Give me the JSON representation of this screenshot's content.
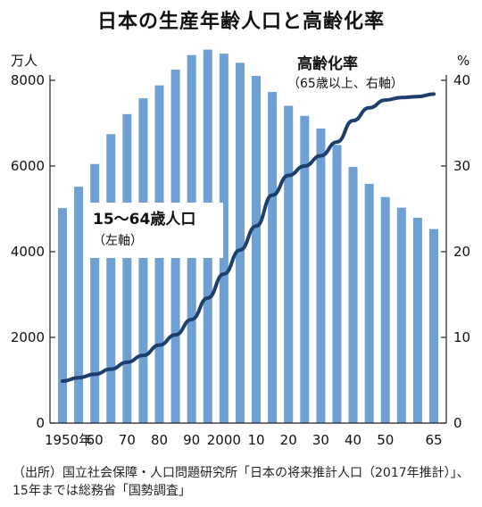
{
  "title": "日本の生産年齢人口と高齢化率",
  "footnote": "（出所）国立社会保障・人口問題研究所「日本の将来推計人口（2017年推計）」、15年までは総務省「国勢調査」",
  "chart_data": {
    "type": "bar+line",
    "title": "日本の生産年齢人口と高齢化率",
    "left_unit": "万人",
    "right_unit": "%",
    "ylim_left": [
      0,
      8000
    ],
    "ylim_right": [
      0,
      40
    ],
    "left_ticks": [
      0,
      2000,
      4000,
      6000,
      8000
    ],
    "right_ticks": [
      0,
      10,
      20,
      30,
      40
    ],
    "x_tick_labels": [
      {
        "year": 1950,
        "label": "1950年"
      },
      {
        "year": 1960,
        "label": "60"
      },
      {
        "year": 1970,
        "label": "70"
      },
      {
        "year": 1980,
        "label": "80"
      },
      {
        "year": 1990,
        "label": "90"
      },
      {
        "year": 2000,
        "label": "2000"
      },
      {
        "year": 2010,
        "label": "10"
      },
      {
        "year": 2020,
        "label": "20"
      },
      {
        "year": 2030,
        "label": "30"
      },
      {
        "year": 2040,
        "label": "40"
      },
      {
        "year": 2050,
        "label": "50"
      },
      {
        "year": 2065,
        "label": "65"
      }
    ],
    "bar_color": "#6fa0d4",
    "line_color": "#1c3f6e",
    "x": [
      1950,
      1955,
      1960,
      1965,
      1970,
      1975,
      1980,
      1985,
      1990,
      1995,
      2000,
      2005,
      2010,
      2015,
      2020,
      2025,
      2030,
      2035,
      2040,
      2045,
      2050,
      2055,
      2060,
      2065
    ],
    "series": [
      {
        "name": "15～64歳人口",
        "axis": "left",
        "kind": "bar",
        "values": [
          5017,
          5517,
          6047,
          6744,
          7212,
          7581,
          7883,
          8251,
          8590,
          8717,
          8622,
          8409,
          8103,
          7728,
          7406,
          7170,
          6875,
          6494,
          5978,
          5584,
          5275,
          5028,
          4793,
          4529
        ]
      },
      {
        "name": "高齢化率",
        "axis": "right",
        "kind": "line",
        "values": [
          4.9,
          5.3,
          5.7,
          6.3,
          7.1,
          7.9,
          9.1,
          10.3,
          12.1,
          14.6,
          17.4,
          20.2,
          23.0,
          26.6,
          28.9,
          30.0,
          31.2,
          32.8,
          35.3,
          36.8,
          37.7,
          38.0,
          38.1,
          38.4
        ]
      }
    ],
    "annotations": {
      "bars_label": "15～64歳人口",
      "bars_sub": "（左軸）",
      "line_label": "高齢化率",
      "line_sub": "（65歳以上、右軸）"
    }
  }
}
